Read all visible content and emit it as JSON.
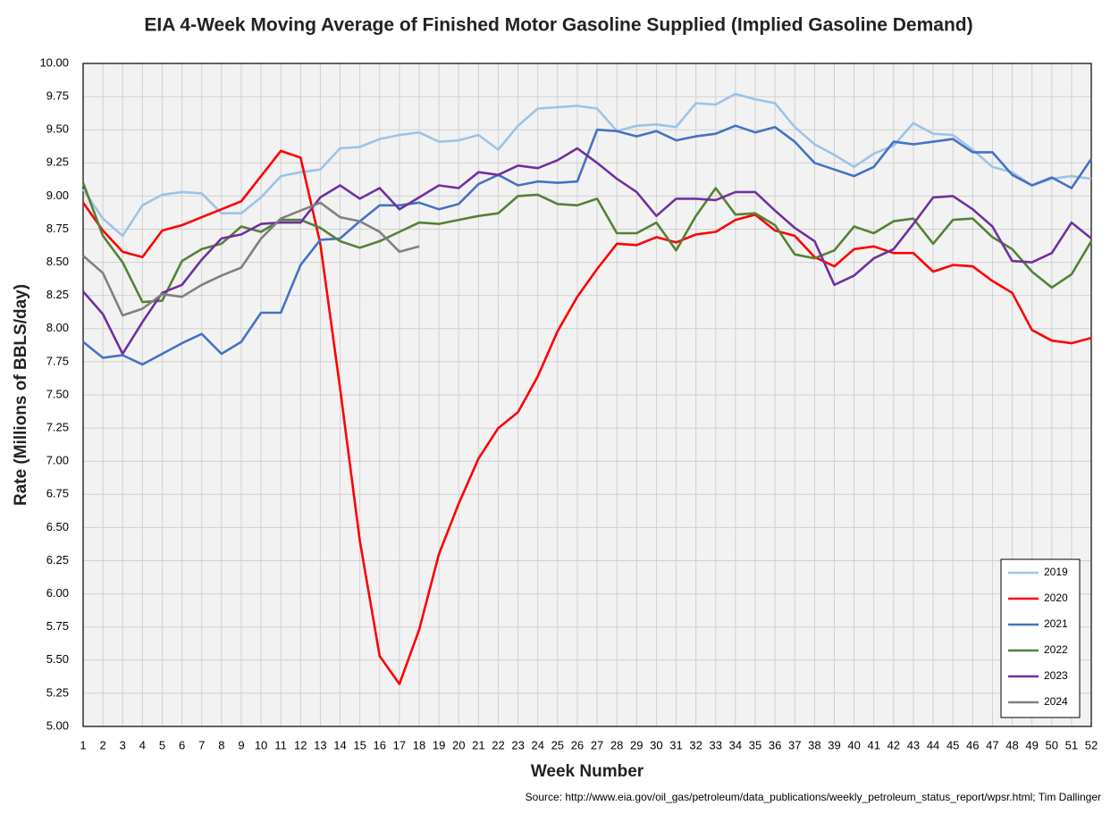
{
  "chart_data": {
    "type": "line",
    "title": "EIA 4-Week Moving Average of Finished Motor Gasoline Supplied (Implied Gasoline Demand)",
    "xlabel": "Week Number",
    "ylabel": "Rate (Millions of BBLS/day)",
    "source": "Source: http://www.eia.gov/oil_gas/petroleum/data_publications/weekly_petroleum_status_report/wpsr.html; Tim Dallinger",
    "x": [
      1,
      2,
      3,
      4,
      5,
      6,
      7,
      8,
      9,
      10,
      11,
      12,
      13,
      14,
      15,
      16,
      17,
      18,
      19,
      20,
      21,
      22,
      23,
      24,
      25,
      26,
      27,
      28,
      29,
      30,
      31,
      32,
      33,
      34,
      35,
      36,
      37,
      38,
      39,
      40,
      41,
      42,
      43,
      44,
      45,
      46,
      47,
      48,
      49,
      50,
      51,
      52
    ],
    "xlim": [
      1,
      52
    ],
    "xticks": [
      1,
      2,
      3,
      4,
      5,
      6,
      7,
      8,
      9,
      10,
      11,
      12,
      13,
      14,
      15,
      16,
      17,
      18,
      19,
      20,
      21,
      22,
      23,
      24,
      25,
      26,
      27,
      28,
      29,
      30,
      31,
      32,
      33,
      34,
      35,
      36,
      37,
      38,
      39,
      40,
      41,
      42,
      43,
      44,
      45,
      46,
      47,
      48,
      49,
      50,
      51,
      52
    ],
    "ylim": [
      5,
      10
    ],
    "yticks": [
      {
        "value": 5,
        "label": "5.00"
      },
      {
        "value": 5.25,
        "label": "5.25"
      },
      {
        "value": 5.5,
        "label": "5.50"
      },
      {
        "value": 5.75,
        "label": "5.75"
      },
      {
        "value": 6,
        "label": "6.00"
      },
      {
        "value": 6.25,
        "label": "6.25"
      },
      {
        "value": 6.5,
        "label": "6.50"
      },
      {
        "value": 6.75,
        "label": "6.75"
      },
      {
        "value": 7,
        "label": "7.00"
      },
      {
        "value": 7.25,
        "label": "7.25"
      },
      {
        "value": 7.5,
        "label": "7.50"
      },
      {
        "value": 7.75,
        "label": "7.75"
      },
      {
        "value": 8,
        "label": "8.00"
      },
      {
        "value": 8.25,
        "label": "8.25"
      },
      {
        "value": 8.5,
        "label": "8.50"
      },
      {
        "value": 8.75,
        "label": "8.75"
      },
      {
        "value": 9,
        "label": "9.00"
      },
      {
        "value": 9.25,
        "label": "9.25"
      },
      {
        "value": 9.5,
        "label": "9.50"
      },
      {
        "value": 9.75,
        "label": "9.75"
      },
      {
        "value": 10,
        "label": "10.00"
      }
    ],
    "grid": true,
    "legend": "lower right",
    "series": [
      {
        "name": "2019",
        "color": "#9dc3e6",
        "values": [
          9.05,
          8.83,
          8.7,
          8.93,
          9.01,
          9.03,
          9.02,
          8.87,
          8.87,
          8.99,
          9.15,
          9.18,
          9.2,
          9.36,
          9.37,
          9.43,
          9.46,
          9.48,
          9.41,
          9.42,
          9.46,
          9.35,
          9.53,
          9.66,
          9.67,
          9.68,
          9.66,
          9.49,
          9.53,
          9.54,
          9.52,
          9.7,
          9.69,
          9.77,
          9.73,
          9.7,
          9.52,
          9.39,
          9.31,
          9.22,
          9.32,
          9.38,
          9.55,
          9.47,
          9.46,
          9.35,
          9.22,
          9.18,
          9.08,
          9.13,
          9.15,
          9.13
        ]
      },
      {
        "name": "2020",
        "color": "#ff0000",
        "values": [
          8.95,
          8.74,
          8.58,
          8.54,
          8.74,
          8.78,
          8.84,
          8.9,
          8.96,
          9.15,
          9.34,
          9.29,
          8.64,
          7.55,
          6.4,
          5.53,
          5.32,
          5.73,
          6.3,
          6.68,
          7.02,
          7.25,
          7.37,
          7.64,
          7.98,
          8.24,
          8.45,
          8.64,
          8.63,
          8.69,
          8.65,
          8.71,
          8.73,
          8.82,
          8.86,
          8.74,
          8.7,
          8.54,
          8.47,
          8.6,
          8.62,
          8.57,
          8.57,
          8.43,
          8.48,
          8.47,
          8.36,
          8.27,
          7.99,
          7.91,
          7.89,
          7.93
        ]
      },
      {
        "name": "2021",
        "color": "#4472c4",
        "values": [
          7.9,
          7.78,
          7.8,
          7.73,
          7.81,
          7.89,
          7.96,
          7.81,
          7.9,
          8.12,
          8.12,
          8.48,
          8.67,
          8.68,
          8.81,
          8.93,
          8.93,
          8.95,
          8.9,
          8.94,
          9.09,
          9.16,
          9.08,
          9.11,
          9.1,
          9.11,
          9.5,
          9.49,
          9.45,
          9.49,
          9.42,
          9.45,
          9.47,
          9.53,
          9.48,
          9.52,
          9.41,
          9.25,
          9.2,
          9.15,
          9.22,
          9.41,
          9.39,
          9.41,
          9.43,
          9.33,
          9.33,
          9.16,
          9.08,
          9.14,
          9.06,
          9.28
        ]
      },
      {
        "name": "2022",
        "color": "#548235",
        "values": [
          9.1,
          8.7,
          8.5,
          8.2,
          8.21,
          8.51,
          8.6,
          8.64,
          8.77,
          8.73,
          8.82,
          8.82,
          8.76,
          8.66,
          8.61,
          8.66,
          8.73,
          8.8,
          8.79,
          8.82,
          8.85,
          8.87,
          9.0,
          9.01,
          8.94,
          8.93,
          8.98,
          8.72,
          8.72,
          8.8,
          8.59,
          8.85,
          9.06,
          8.86,
          8.87,
          8.78,
          8.56,
          8.53,
          8.59,
          8.77,
          8.72,
          8.81,
          8.83,
          8.64,
          8.82,
          8.83,
          8.69,
          8.6,
          8.43,
          8.31,
          8.41,
          8.66
        ]
      },
      {
        "name": "2023",
        "color": "#7030a0",
        "values": [
          8.28,
          8.11,
          7.81,
          8.05,
          8.27,
          8.33,
          8.52,
          8.68,
          8.71,
          8.79,
          8.8,
          8.8,
          8.99,
          9.08,
          8.98,
          9.06,
          8.9,
          8.99,
          9.08,
          9.06,
          9.18,
          9.16,
          9.23,
          9.21,
          9.27,
          9.36,
          9.25,
          9.13,
          9.03,
          8.85,
          8.98,
          8.98,
          8.97,
          9.03,
          9.03,
          8.89,
          8.76,
          8.66,
          8.33,
          8.4,
          8.53,
          8.6,
          8.79,
          8.99,
          9.0,
          8.9,
          8.77,
          8.51,
          8.5,
          8.57,
          8.8,
          8.68
        ]
      },
      {
        "name": "2024",
        "color": "#808080",
        "values": [
          8.55,
          8.42,
          8.1,
          8.15,
          8.26,
          8.24,
          8.33,
          8.4,
          8.46,
          8.68,
          8.83,
          8.89,
          8.95,
          8.84,
          8.81,
          8.73,
          8.58,
          8.62,
          null,
          null,
          null,
          null,
          null,
          null,
          null,
          null,
          null,
          null,
          null,
          null,
          null,
          null,
          null,
          null,
          null,
          null,
          null,
          null,
          null,
          null,
          null,
          null,
          null,
          null,
          null,
          null,
          null,
          null,
          null,
          null,
          null,
          null
        ]
      }
    ]
  }
}
